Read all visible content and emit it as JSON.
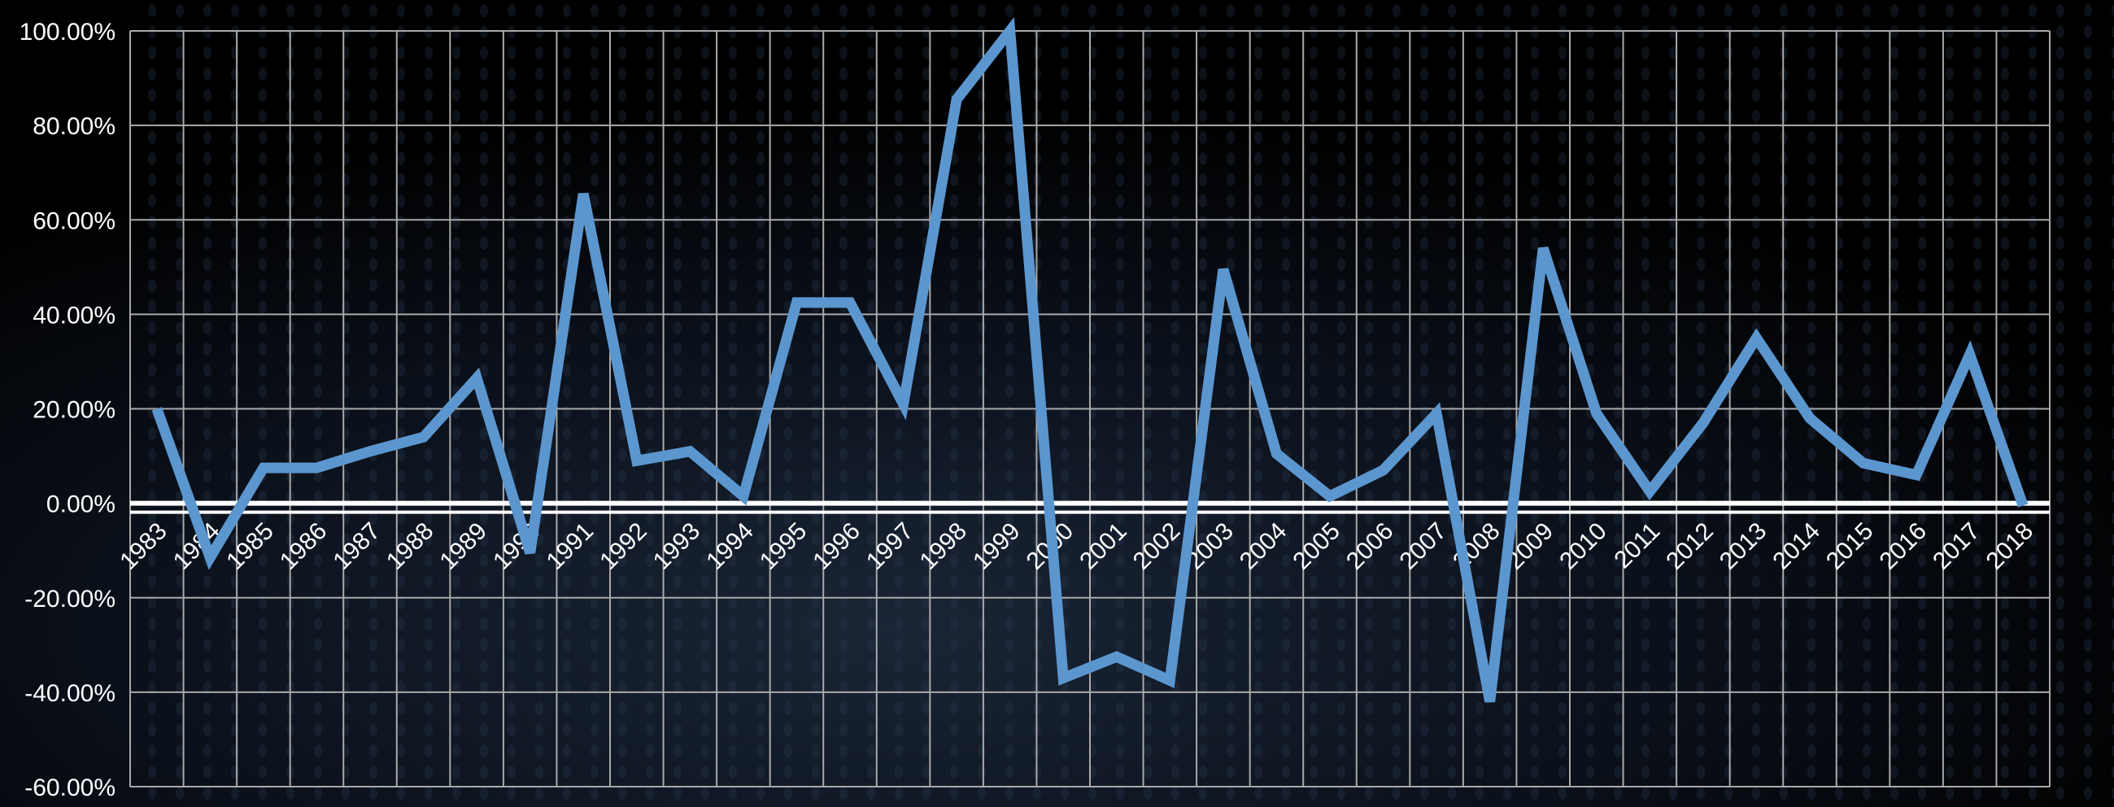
{
  "chart_data": {
    "type": "line",
    "title": "",
    "xlabel": "",
    "ylabel": "",
    "categories": [
      "1983",
      "1984",
      "1985",
      "1986",
      "1987",
      "1988",
      "1989",
      "1990",
      "1991",
      "1992",
      "1993",
      "1994",
      "1995",
      "1996",
      "1997",
      "1998",
      "1999",
      "2000",
      "2001",
      "2002",
      "2003",
      "2004",
      "2005",
      "2006",
      "2007",
      "2008",
      "2009",
      "2010",
      "2011",
      "2012",
      "2013",
      "2014",
      "2015",
      "2016",
      "2017",
      "2018"
    ],
    "series": [
      {
        "values": [
          20.0,
          -11.5,
          7.5,
          7.5,
          11.0,
          14.0,
          26.5,
          -10.5,
          65.5,
          9.0,
          11.0,
          1.5,
          42.5,
          42.5,
          21.0,
          85.5,
          100.0,
          -37.0,
          -32.5,
          -37.5,
          49.5,
          10.5,
          1.5,
          7.0,
          19.0,
          -42.0,
          54.0,
          19.0,
          2.5,
          17.0,
          35.0,
          18.0,
          8.5,
          6.0,
          31.5,
          -0.5
        ]
      }
    ],
    "ylim": [
      -60,
      100
    ],
    "yticks": [
      "100.00%",
      "80.00%",
      "60.00%",
      "40.00%",
      "20.00%",
      "0.00%",
      "-20.00%",
      "-40.00%",
      "-60.00%"
    ],
    "ytick_values": [
      100,
      80,
      60,
      40,
      20,
      0,
      -20,
      -40,
      -60
    ],
    "grid": true,
    "legend": "none",
    "colors": {
      "line": "#5b96cf",
      "grid": "#a9a9a9",
      "zero_line": "#ffffff",
      "background": "#000000",
      "text": "#ffffff"
    }
  }
}
